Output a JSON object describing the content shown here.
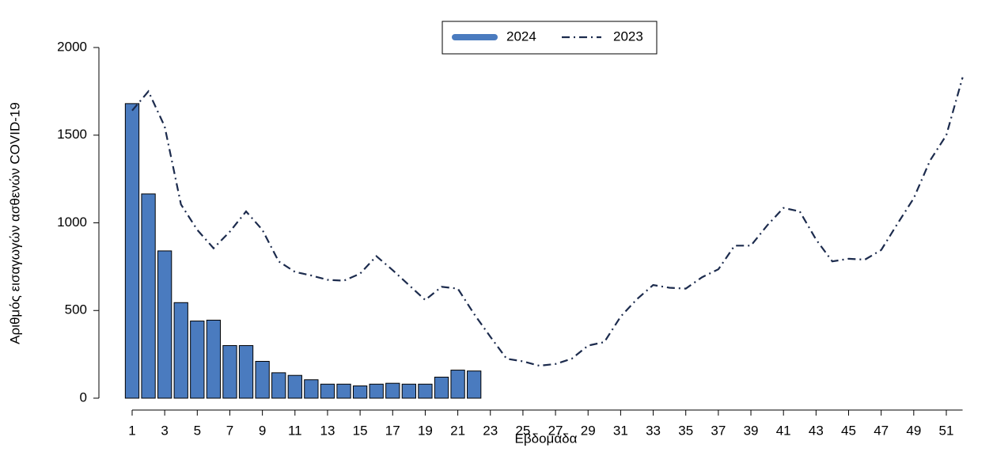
{
  "chart_data": {
    "type": "bar",
    "x_label": "Εβδομάδα",
    "y_label": "Αριθμός εισαγωγών ασθενών COVID-19",
    "categories": [
      1,
      null,
      3,
      null,
      5,
      null,
      7,
      null,
      9,
      null,
      11,
      null,
      13,
      null,
      15,
      null,
      17,
      null,
      19,
      null,
      21,
      null,
      23,
      null,
      25,
      null,
      27,
      null,
      29,
      null,
      31,
      null,
      33,
      null,
      35,
      null,
      37,
      null,
      39,
      null,
      41,
      null,
      43,
      null,
      45,
      null,
      47,
      null,
      49,
      null,
      51,
      null
    ],
    "series": [
      {
        "name": "2024",
        "type": "bar",
        "color": "#4a7bbf",
        "values": [
          1680,
          1165,
          840,
          545,
          440,
          445,
          300,
          300,
          210,
          145,
          130,
          105,
          80,
          80,
          70,
          80,
          85,
          80,
          80,
          120,
          160,
          155,
          null,
          null,
          null,
          null,
          null,
          null,
          null,
          null,
          null,
          null,
          null,
          null,
          null,
          null,
          null,
          null,
          null,
          null,
          null,
          null,
          null,
          null,
          null,
          null,
          null,
          null,
          null,
          null,
          null,
          null
        ]
      },
      {
        "name": "2023",
        "type": "line",
        "color": "#1c2b4d",
        "values": [
          1640,
          1750,
          1550,
          1105,
          960,
          855,
          950,
          1065,
          960,
          780,
          720,
          700,
          675,
          670,
          710,
          810,
          730,
          645,
          560,
          635,
          625,
          480,
          350,
          225,
          210,
          185,
          195,
          225,
          300,
          320,
          465,
          565,
          645,
          630,
          625,
          690,
          735,
          870,
          870,
          985,
          1085,
          1065,
          905,
          780,
          795,
          790,
          845,
          995,
          1140,
          1355,
          1500,
          1830
        ]
      }
    ],
    "ylim": [
      0,
      2000
    ],
    "yticks": [
      0,
      500,
      1000,
      1500,
      2000
    ],
    "grid": false,
    "legend": "top"
  }
}
